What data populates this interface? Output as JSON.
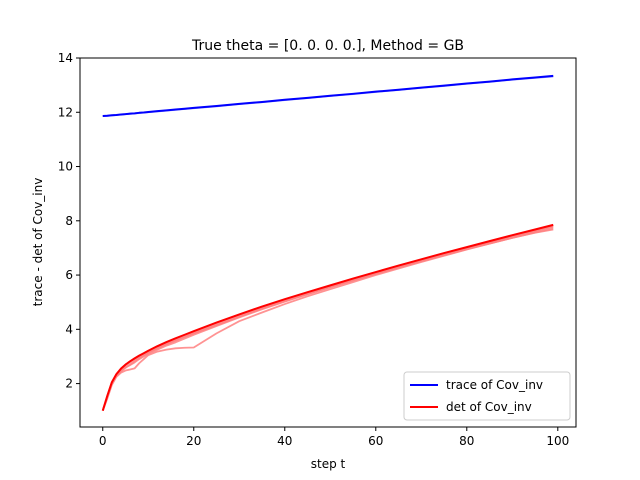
{
  "chart_data": {
    "type": "line",
    "title": "True theta = [0. 0. 0. 0.], Method = GB",
    "xlabel": "step t",
    "ylabel": "trace - det of Cov_inv",
    "xlim": [
      -5,
      104
    ],
    "ylim": [
      0.4,
      14
    ],
    "xticks": [
      0,
      20,
      40,
      60,
      80,
      100
    ],
    "yticks": [
      2,
      4,
      6,
      8,
      10,
      12,
      14
    ],
    "grid": false,
    "legend_position": "lower-right",
    "colors": {
      "trace": "#0000ff",
      "det": "#ff0000",
      "trace_faint": "#8080ff",
      "det_faint": "#ff8080"
    },
    "x": [
      0,
      1,
      2,
      3,
      4,
      5,
      6,
      7,
      8,
      9,
      10,
      12,
      14,
      16,
      18,
      20,
      25,
      30,
      35,
      40,
      45,
      50,
      55,
      60,
      65,
      70,
      75,
      80,
      85,
      90,
      95,
      99
    ],
    "series": [
      {
        "name": "trace of Cov_inv",
        "group": "trace",
        "legend": true,
        "values": [
          11.86,
          11.87,
          11.89,
          11.9,
          11.92,
          11.93,
          11.95,
          11.96,
          11.98,
          11.99,
          12.01,
          12.04,
          12.07,
          12.1,
          12.13,
          12.16,
          12.23,
          12.31,
          12.38,
          12.46,
          12.53,
          12.61,
          12.68,
          12.76,
          12.83,
          12.91,
          12.98,
          13.06,
          13.13,
          13.21,
          13.28,
          13.34
        ]
      },
      {
        "name": "det of Cov_inv",
        "group": "det",
        "legend": true,
        "values": [
          1.0,
          1.55,
          2.05,
          2.35,
          2.55,
          2.7,
          2.82,
          2.93,
          3.03,
          3.12,
          3.21,
          3.38,
          3.53,
          3.67,
          3.8,
          3.93,
          4.25,
          4.55,
          4.84,
          5.11,
          5.37,
          5.62,
          5.87,
          6.11,
          6.35,
          6.58,
          6.81,
          7.03,
          7.25,
          7.47,
          7.68,
          7.85
        ]
      },
      {
        "group": "det",
        "legend": false,
        "values": [
          1.0,
          1.5,
          2.0,
          2.3,
          2.48,
          2.6,
          2.68,
          2.78,
          2.9,
          3.0,
          3.1,
          3.25,
          3.4,
          3.52,
          3.66,
          3.8,
          4.12,
          4.44,
          4.74,
          5.02,
          5.29,
          5.55,
          5.81,
          6.05,
          6.3,
          6.53,
          6.76,
          6.99,
          7.21,
          7.42,
          7.63,
          7.8
        ]
      },
      {
        "group": "det",
        "legend": false,
        "values": [
          1.0,
          1.45,
          1.95,
          2.25,
          2.4,
          2.48,
          2.52,
          2.56,
          2.75,
          2.9,
          3.05,
          3.18,
          3.25,
          3.3,
          3.32,
          3.33,
          3.85,
          4.3,
          4.62,
          4.93,
          5.22,
          5.48,
          5.74,
          6.0,
          6.24,
          6.48,
          6.71,
          6.94,
          7.16,
          7.37,
          7.57,
          7.72
        ]
      },
      {
        "group": "det",
        "legend": false,
        "values": [
          1.0,
          1.52,
          2.02,
          2.32,
          2.52,
          2.66,
          2.78,
          2.88,
          2.98,
          3.08,
          3.16,
          3.32,
          3.46,
          3.6,
          3.73,
          3.86,
          4.18,
          4.49,
          4.78,
          5.06,
          5.32,
          5.58,
          5.83,
          6.08,
          6.32,
          6.55,
          6.77,
          7.0,
          7.21,
          7.42,
          7.63,
          7.78
        ]
      },
      {
        "group": "det",
        "legend": false,
        "values": [
          1.0,
          1.48,
          1.98,
          2.28,
          2.45,
          2.58,
          2.7,
          2.82,
          2.94,
          3.04,
          3.14,
          3.3,
          3.45,
          3.58,
          3.72,
          3.85,
          4.15,
          4.46,
          4.76,
          5.04,
          5.3,
          5.56,
          5.8,
          6.04,
          6.28,
          6.51,
          6.73,
          6.95,
          7.16,
          7.37,
          7.56,
          7.68
        ]
      },
      {
        "group": "trace",
        "legend": false,
        "values": [
          11.86,
          11.87,
          11.88,
          11.9,
          11.91,
          11.93,
          11.94,
          11.96,
          11.97,
          11.99,
          12.0,
          12.03,
          12.06,
          12.09,
          12.12,
          12.15,
          12.22,
          12.3,
          12.37,
          12.45,
          12.52,
          12.6,
          12.67,
          12.75,
          12.82,
          12.9,
          12.97,
          13.05,
          13.12,
          13.2,
          13.27,
          13.32
        ]
      }
    ]
  }
}
